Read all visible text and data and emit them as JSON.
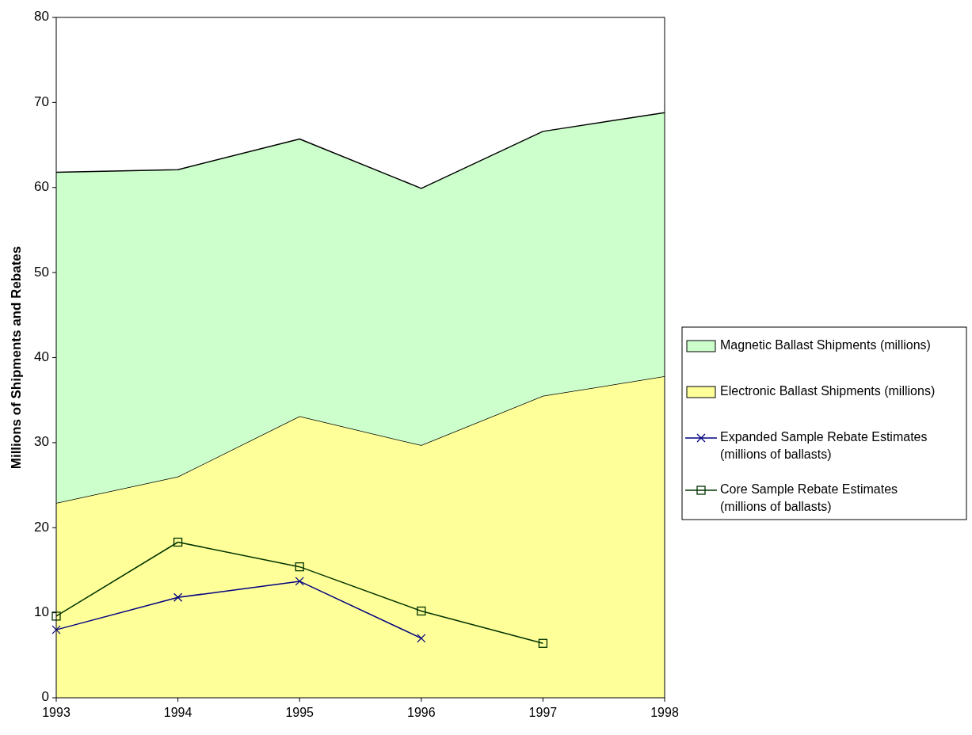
{
  "chart_data": {
    "type": "area",
    "stacked": true,
    "ylabel": "Millions of Shipments and Rebates",
    "x": [
      1993,
      1994,
      1995,
      1996,
      1997,
      1998
    ],
    "xlim": [
      1993,
      1998
    ],
    "xticks": [
      1993,
      1994,
      1995,
      1996,
      1997,
      1998
    ],
    "ylim": [
      0,
      80
    ],
    "yticks": [
      0,
      10,
      20,
      30,
      40,
      50,
      60,
      70,
      80
    ],
    "grid": false,
    "legend": "right",
    "series": [
      {
        "name": "Electronic Ballast Shipments (millions)",
        "color": "#ffff99",
        "values": [
          22.9,
          26.0,
          33.1,
          29.7,
          35.5,
          37.8
        ]
      },
      {
        "name": "Magnetic Ballast Shipments (millions)",
        "color": "#ccffcc",
        "values": [
          38.9,
          36.1,
          32.6,
          30.2,
          31.1,
          31.0
        ]
      },
      {
        "name": "Expanded Sample Rebate Estimates (millions of ballasts)",
        "type": "line",
        "marker": "cross",
        "color": "#000080",
        "values": [
          8.0,
          11.8,
          13.7,
          7.0,
          null,
          null
        ]
      },
      {
        "name": "Core Sample Rebate Estimates (millions of ballasts)",
        "type": "line",
        "marker": "square",
        "color": "#003300",
        "values": [
          9.6,
          18.3,
          15.4,
          10.2,
          6.4,
          null
        ]
      }
    ]
  }
}
